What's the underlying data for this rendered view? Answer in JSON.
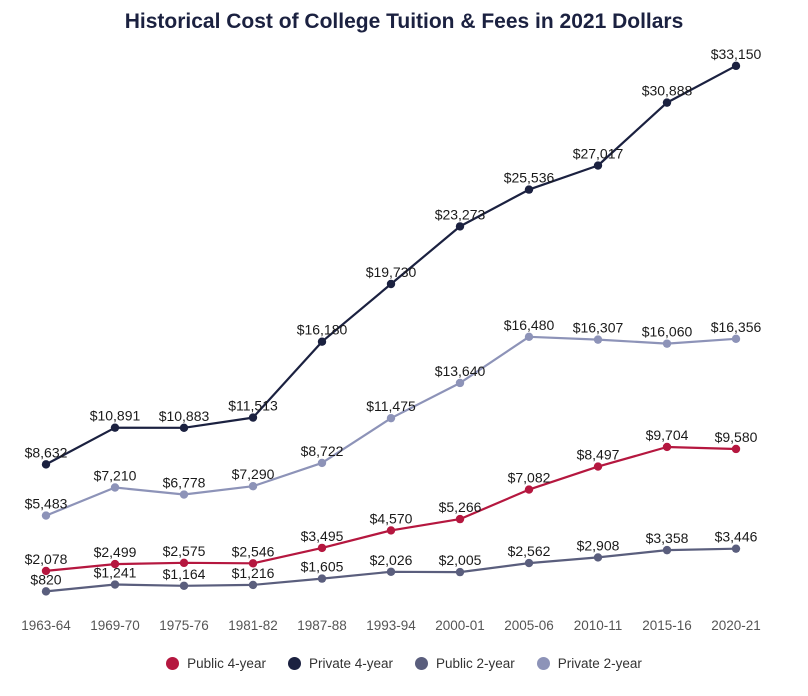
{
  "chart_data": {
    "type": "line",
    "title": "Historical Cost of College Tuition & Fees in 2021 Dollars",
    "xlabel": "",
    "ylabel": "",
    "ylim": [
      0,
      35000
    ],
    "grid": false,
    "legend_position": "bottom",
    "categories": [
      "1963-64",
      "1969-70",
      "1975-76",
      "1981-82",
      "1987-88",
      "1993-94",
      "2000-01",
      "2005-06",
      "2010-11",
      "2015-16",
      "2020-21"
    ],
    "series": [
      {
        "name": "Public 4-year",
        "color": "#b5173f",
        "values": [
          2078,
          2499,
          2575,
          2546,
          3495,
          4570,
          5266,
          7082,
          8497,
          9704,
          9580
        ],
        "labels": [
          "$2,078",
          "$2,499",
          "$2,575",
          "$2,546",
          "$3,495",
          "$4,570",
          "$5,266",
          "$7,082",
          "$8,497",
          "$9,704",
          "$9,580"
        ]
      },
      {
        "name": "Private 4-year",
        "color": "#1b2140",
        "values": [
          8632,
          10891,
          10883,
          11513,
          16180,
          19730,
          23273,
          25536,
          27017,
          30888,
          33150
        ],
        "labels": [
          "$8,632",
          "$10,891",
          "$10,883",
          "$11,513",
          "$16,180",
          "$19,730",
          "$23,273",
          "$25,536",
          "$27,017",
          "$30,888",
          "$33,150"
        ]
      },
      {
        "name": "Public 2-year",
        "color": "#5a5e7d",
        "values": [
          820,
          1241,
          1164,
          1216,
          1605,
          2026,
          2005,
          2562,
          2908,
          3358,
          3446
        ],
        "labels": [
          "$820",
          "$1,241",
          "$1,164",
          "$1,216",
          "$1,605",
          "$2,026",
          "$2,005",
          "$2,562",
          "$2,908",
          "$3,358",
          "$3,446"
        ]
      },
      {
        "name": "Private 2-year",
        "color": "#8d93b8",
        "values": [
          5483,
          7210,
          6778,
          7290,
          8722,
          11475,
          13640,
          16480,
          16307,
          16060,
          16356
        ],
        "labels": [
          "$5,483",
          "$7,210",
          "$6,778",
          "$7,290",
          "$8,722",
          "$11,475",
          "$13,640",
          "$16,480",
          "$16,307",
          "$16,060",
          "$16,356"
        ]
      }
    ]
  }
}
